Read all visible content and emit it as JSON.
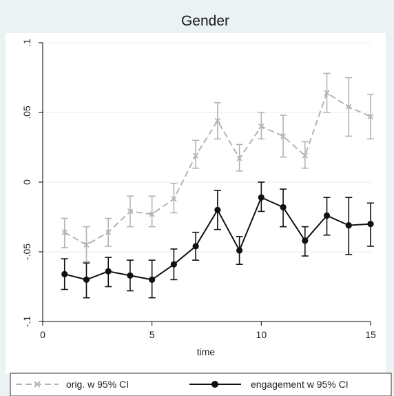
{
  "chart_data": {
    "type": "line",
    "title": "Gender",
    "xlabel": "time",
    "ylabel": "",
    "xlim": [
      0,
      15
    ],
    "ylim": [
      -0.1,
      0.1
    ],
    "x_ticks": [
      0,
      5,
      10,
      15
    ],
    "x_tick_labels": [
      "0",
      "5",
      "10",
      "15"
    ],
    "y_ticks": [
      -0.1,
      -0.05,
      0,
      0.05,
      0.1
    ],
    "y_tick_labels": [
      "-.1",
      "-.05",
      "0",
      ".05",
      ".1"
    ],
    "grid": true,
    "legend_position": "bottom",
    "x": [
      1,
      2,
      3,
      4,
      5,
      6,
      7,
      8,
      9,
      10,
      11,
      12,
      13,
      14,
      15
    ],
    "series": [
      {
        "name": "orig. w 95% CI",
        "color": "#b3b3b3",
        "line_style": "dashed",
        "marker": "x",
        "values": [
          -0.036,
          -0.045,
          -0.036,
          -0.021,
          -0.023,
          -0.012,
          0.019,
          0.044,
          0.017,
          0.04,
          0.033,
          0.019,
          0.064,
          0.054,
          0.047
        ],
        "ci_low": [
          -0.047,
          -0.057,
          -0.046,
          -0.032,
          -0.032,
          -0.022,
          0.01,
          0.031,
          0.008,
          0.031,
          0.018,
          0.01,
          0.05,
          0.033,
          0.031
        ],
        "ci_high": [
          -0.026,
          -0.032,
          -0.026,
          -0.01,
          -0.01,
          -0.001,
          0.03,
          0.057,
          0.027,
          0.05,
          0.048,
          0.029,
          0.078,
          0.075,
          0.063
        ]
      },
      {
        "name": "engagement w 95% CI",
        "color": "#111111",
        "line_style": "solid",
        "marker": "circle",
        "values": [
          -0.066,
          -0.07,
          -0.064,
          -0.067,
          -0.07,
          -0.059,
          -0.046,
          -0.02,
          -0.049,
          -0.011,
          -0.018,
          -0.042,
          -0.024,
          -0.031,
          -0.03
        ],
        "ci_low": [
          -0.077,
          -0.083,
          -0.075,
          -0.078,
          -0.083,
          -0.07,
          -0.056,
          -0.034,
          -0.059,
          -0.021,
          -0.032,
          -0.053,
          -0.038,
          -0.052,
          -0.046
        ],
        "ci_high": [
          -0.055,
          -0.058,
          -0.054,
          -0.056,
          -0.056,
          -0.048,
          -0.036,
          -0.006,
          -0.039,
          0.0,
          -0.005,
          -0.032,
          -0.011,
          -0.011,
          -0.015
        ]
      }
    ]
  },
  "legend": {
    "orig_label": "orig. w 95% CI",
    "engagement_label": "engagement w 95% CI"
  }
}
